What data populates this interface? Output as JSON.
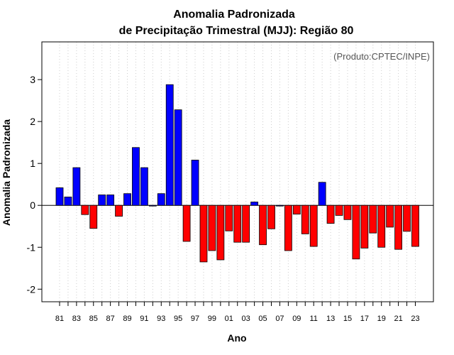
{
  "chart_data": {
    "type": "bar",
    "title": "Anomalia Padronizada",
    "subtitle": "de Precipitação Trimestral (MJJ): Região 80",
    "xlabel": "Ano",
    "ylabel": "Anomalia Padronizada",
    "annotation": "(Produto:CPTEC/INPE)",
    "ylim": [
      -2.3,
      3.9
    ],
    "yticks": [
      -2,
      -1,
      0,
      1,
      2,
      3
    ],
    "grid": "vertical dotted",
    "positive_color": "#0000ff",
    "negative_color": "#ff0000",
    "xtick_labels": [
      "81",
      "83",
      "85",
      "87",
      "89",
      "91",
      "93",
      "95",
      "97",
      "99",
      "01",
      "03",
      "05",
      "07",
      "09",
      "11",
      "13",
      "15",
      "17",
      "19",
      "21",
      "23"
    ],
    "categories": [
      "1981",
      "1982",
      "1983",
      "1984",
      "1985",
      "1986",
      "1987",
      "1988",
      "1989",
      "1990",
      "1991",
      "1992",
      "1993",
      "1994",
      "1995",
      "1996",
      "1997",
      "1998",
      "1999",
      "2000",
      "2001",
      "2002",
      "2003",
      "2004",
      "2005",
      "2006",
      "2007",
      "2008",
      "2009",
      "2010",
      "2011",
      "2012",
      "2013",
      "2014",
      "2015",
      "2016",
      "2017",
      "2018",
      "2019",
      "2020",
      "2021",
      "2022",
      "2023"
    ],
    "values": [
      0.42,
      0.2,
      0.9,
      -0.22,
      -0.55,
      0.25,
      0.25,
      -0.26,
      0.28,
      1.38,
      0.9,
      0.0,
      0.28,
      2.88,
      2.28,
      -0.86,
      1.08,
      -1.35,
      -1.08,
      -1.3,
      -0.61,
      -0.88,
      -0.88,
      0.08,
      -0.94,
      -0.56,
      0.0,
      -1.08,
      -0.21,
      -0.68,
      -0.98,
      0.55,
      -0.43,
      -0.24,
      -0.34,
      -1.28,
      -1.02,
      -0.66,
      -1.0,
      -0.52,
      -1.05,
      -0.62,
      -0.98
    ]
  }
}
